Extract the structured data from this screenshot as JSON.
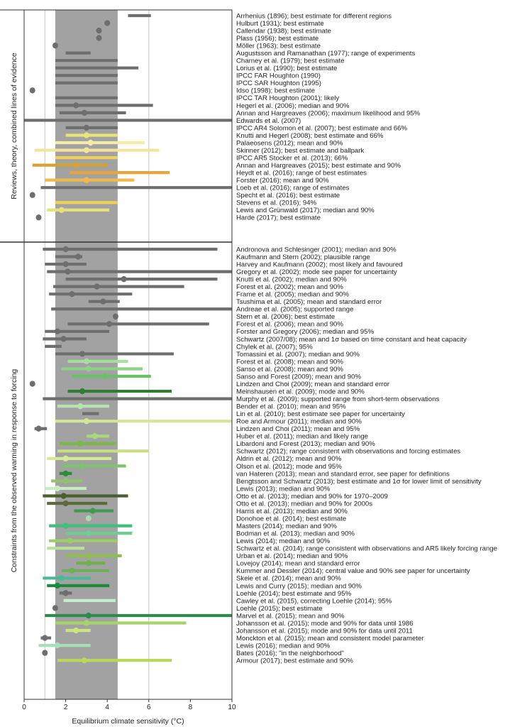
{
  "chart_data": {
    "type": "range-plot",
    "xlabel": "Equilibrium climate sensitivity (°C)",
    "xlim": [
      0,
      10
    ],
    "xticks": [
      "0",
      "2",
      "4",
      "6",
      "8",
      "10"
    ],
    "likely_range": [
      1.5,
      4.5
    ],
    "reference_lines": [
      1,
      6
    ],
    "grid": false,
    "panels": [
      {
        "label": "Reviews, theory, combined lines of evidence",
        "rows": [
          {
            "label": "Arrhenius (1896); best estimate for different regions",
            "low": 5.0,
            "high": 6.1,
            "best": null,
            "color": "#6e6e6e"
          },
          {
            "label": "Hulburt (1931); best estimate",
            "low": null,
            "high": null,
            "best": 4.0,
            "color": "#6e6e6e"
          },
          {
            "label": "Callendar (1938); best estimate",
            "low": null,
            "high": null,
            "best": 3.6,
            "color": "#6e6e6e"
          },
          {
            "label": "Plass (1956); best estimate",
            "low": null,
            "high": null,
            "best": 3.6,
            "color": "#6e6e6e"
          },
          {
            "label": "Möller (1963); best estimate",
            "low": null,
            "high": null,
            "best": 1.5,
            "color": "#6e6e6e"
          },
          {
            "label": "Augustsson and Ramanathan (1977); range of experiments",
            "low": 2.0,
            "high": 3.2,
            "best": null,
            "color": "#6e6e6e"
          },
          {
            "label": "Charney et al. (1979); best estimate",
            "low": 1.5,
            "high": 4.5,
            "best": null,
            "color": "#6e6e6e"
          },
          {
            "label": "Lorius et al. (1990); best estimate",
            "low": 1.5,
            "high": 5.5,
            "best": null,
            "color": "#6e6e6e"
          },
          {
            "label": "IPCC FAR Houghton (1990)",
            "low": 1.5,
            "high": 4.5,
            "best": null,
            "color": "#6e6e6e"
          },
          {
            "label": "IPCC SAR Houghton (1995)",
            "low": 1.5,
            "high": 4.5,
            "best": null,
            "color": "#6e6e6e"
          },
          {
            "label": "Idso (1998); best estimate",
            "low": null,
            "high": null,
            "best": 0.4,
            "color": "#6e6e6e"
          },
          {
            "label": "IPCC TAR Houghton (2001); likely",
            "low": 1.5,
            "high": 4.5,
            "best": null,
            "color": "#6e6e6e"
          },
          {
            "label": "Hegerl et al. (2006); median and 90%",
            "low": 1.5,
            "high": 6.2,
            "best": 2.5,
            "color": "#6e6e6e"
          },
          {
            "label": "Annan and Hargreaves (2006); maximum likelihood and 95%",
            "low": 1.7,
            "high": 4.9,
            "best": 2.9,
            "color": "#6e6e6e"
          },
          {
            "label": "Edwards et al. (2007)",
            "low": 0.0,
            "high": 10.0,
            "best": null,
            "color": "#6e6e6e"
          },
          {
            "label": "IPCC AR4 Solomon et al. (2007); best estimate and 66%",
            "low": 2.0,
            "high": 4.5,
            "best": 3.0,
            "color": "#6e6e6e"
          },
          {
            "label": "Knutti and Hegerl (2008); best estimate and 66%",
            "low": 2.0,
            "high": 4.5,
            "best": 3.0,
            "color": "#e6e67a"
          },
          {
            "label": "Palaeosens (2012); mean and 90%",
            "low": 1.5,
            "high": 5.8,
            "best": 3.2,
            "color": "#f3eba8"
          },
          {
            "label": "Skinner (2012); best estimate and ballpark",
            "low": 0.5,
            "high": 6.5,
            "best": 3.0,
            "color": "#f2e49d"
          },
          {
            "label": "IPCC AR5 Stocker et al. (2013); 66%",
            "low": 1.5,
            "high": 4.5,
            "best": null,
            "color": "#f0d060"
          },
          {
            "label": "Annan and Hargreaves (2015); best estimate and 90%",
            "low": 0.4,
            "high": 4.0,
            "best": 2.5,
            "color": "#d4a431"
          },
          {
            "label": "Heydt et al. (2016); range of best estimates",
            "low": 2.2,
            "high": 7.0,
            "best": null,
            "color": "#e8a63a"
          },
          {
            "label": "Forster (2016); mean and 90%",
            "low": 1.0,
            "high": 5.3,
            "best": 3.0,
            "color": "#f0b94a"
          },
          {
            "label": "Loeb et al. (2016); range of estimates",
            "low": 0.8,
            "high": 10.0,
            "best": null,
            "color": "#6e6e6e"
          },
          {
            "label": "Specht et al. (2016); best estimate",
            "low": null,
            "high": null,
            "best": 0.4,
            "color": "#6e6e6e"
          },
          {
            "label": "Stevens et al. (2016); 94%",
            "low": 1.5,
            "high": 4.5,
            "best": null,
            "color": "#f0d050"
          },
          {
            "label": "Lewis and Grünwald (2017); median and 90%",
            "low": 1.1,
            "high": 4.1,
            "best": 1.8,
            "color": "#e6e278"
          },
          {
            "label": "Harde (2017); best estimate",
            "low": null,
            "high": null,
            "best": 0.7,
            "color": "#6e6e6e"
          }
        ]
      },
      {
        "label": "Constraints from the observed warming in response to forcing",
        "rows": [
          {
            "label": "Andronova and Schlesinger (2001); median and 90%",
            "low": 0.9,
            "high": 9.3,
            "best": 2.0,
            "color": "#6e6e6e"
          },
          {
            "label": "Kaufmann and Stern (2002); plausible range",
            "low": 1.5,
            "high": 2.8,
            "best": 2.6,
            "color": "#6e6e6e"
          },
          {
            "label": "Harvey and Kaufmann (2002); most likely and favoured",
            "low": 1.0,
            "high": 3.0,
            "best": 2.0,
            "color": "#6e6e6e"
          },
          {
            "label": "Gregory et al. (2002); mode see paper for uncertainty",
            "low": 1.1,
            "high": 10.0,
            "best": 2.1,
            "color": "#6e6e6e"
          },
          {
            "label": "Knutti et al. (2002); median and 90%",
            "low": 2.0,
            "high": 9.3,
            "best": 4.8,
            "color": "#6e6e6e"
          },
          {
            "label": "Forest et al. (2002); mean and 90%",
            "low": 1.4,
            "high": 7.7,
            "best": 3.5,
            "color": "#6e6e6e"
          },
          {
            "label": "Frame et al. (2005); median and 90%",
            "low": 1.2,
            "high": 5.2,
            "best": 2.3,
            "color": "#6e6e6e"
          },
          {
            "label": "Tsushima et al. (2005); mean and standard error",
            "low": 3.1,
            "high": 4.6,
            "best": 3.8,
            "color": "#6e6e6e"
          },
          {
            "label": "Andreae et al. (2005); supported range",
            "low": 1.3,
            "high": 10.0,
            "best": null,
            "color": "#6e6e6e"
          },
          {
            "label": "Stern et al. (2006); best estimate",
            "low": null,
            "high": null,
            "best": 4.4,
            "color": "#6e6e6e"
          },
          {
            "label": "Forest et al. (2006); mean and 90%",
            "low": 2.1,
            "high": 8.9,
            "best": 4.1,
            "color": "#6e6e6e"
          },
          {
            "label": "Forster and Gregory (2006); median and 95%",
            "low": 1.0,
            "high": 4.1,
            "best": 1.6,
            "color": "#6e6e6e"
          },
          {
            "label": "Schwartz (2007/08); mean and 1σ based on time constant and heat capacity",
            "low": 0.9,
            "high": 3.0,
            "best": 1.9,
            "color": "#6e6e6e"
          },
          {
            "label": "Chylek et al. (2007); 95%",
            "low": 1.0,
            "high": 1.8,
            "best": null,
            "color": "#6e6e6e"
          },
          {
            "label": "Tomassini et al. (2007); median and 90%",
            "low": 1.5,
            "high": 7.2,
            "best": 2.8,
            "color": "#6e6e6e"
          },
          {
            "label": "Forest et al. (2008); mean and 90%",
            "low": 2.1,
            "high": 5.0,
            "best": 3.0,
            "color": "#a8dda0"
          },
          {
            "label": "Sanso et al. (2008); mean and 90%",
            "low": 1.8,
            "high": 5.7,
            "best": 3.1,
            "color": "#8ed28a"
          },
          {
            "label": "Sanso and Forest (2009); mean and 90%",
            "low": 2.3,
            "high": 6.1,
            "best": 3.9,
            "color": "#6abf6a"
          },
          {
            "label": "Lindzen and Choi (2009); mean and standard error",
            "low": null,
            "high": null,
            "best": 0.4,
            "color": "#6e6e6e"
          },
          {
            "label": "Meinshausen et al. (2009); mode and 90%",
            "low": 2.1,
            "high": 7.1,
            "best": 2.8,
            "color": "#2e7d32"
          },
          {
            "label": "Murphy et al. (2009); supported range from short-term observations",
            "low": 0.9,
            "high": 10.0,
            "best": null,
            "color": "#6e6e6e"
          },
          {
            "label": "Bender et al. (2010); mean and 95%",
            "low": 1.6,
            "high": 4.1,
            "best": 2.7,
            "color": "#b6e4b0"
          },
          {
            "label": "Lin et al. (2010); best estimate see paper for uncertainty",
            "low": 2.8,
            "high": 3.6,
            "best": null,
            "color": "#6e6e6e"
          },
          {
            "label": "Roe and Armour (2011); median and 90%",
            "low": 1.5,
            "high": 10.0,
            "best": 3.0,
            "color": "#d2e696"
          },
          {
            "label": "Lindzen and Choi (2011); mean and 95%",
            "low": 0.5,
            "high": 1.1,
            "best": 0.7,
            "color": "#6e6e6e"
          },
          {
            "label": "Huber et al. (2011); median and likely range",
            "low": 3.0,
            "high": 4.1,
            "best": 3.4,
            "color": "#a8d87a"
          },
          {
            "label": "Libardoni and Forest (2013); median and 90%",
            "low": 1.7,
            "high": 4.4,
            "best": 2.7,
            "color": "#7ab848"
          },
          {
            "label": "Schwartz (2012); range consistent with observations and forcing estimates",
            "low": 1.6,
            "high": 6.0,
            "best": null,
            "color": "#c6e082"
          },
          {
            "label": "Aldrin et al. (2012); mean and 90%",
            "low": 1.1,
            "high": 4.2,
            "best": 2.0,
            "color": "#d6ea96"
          },
          {
            "label": "Olson et al. (2012); mode and 95%",
            "low": 1.8,
            "high": 4.9,
            "best": 2.8,
            "color": "#7cc46e"
          },
          {
            "label": "van Hateren (2013); mean and standard error, see paper for definitions",
            "low": 1.7,
            "high": 2.3,
            "best": 2.0,
            "color": "#2e8b3e"
          },
          {
            "label": "Bengtsson and Schwartz (2013); best estimate and 1σ for lower limit of sensitivity",
            "low": 1.3,
            "high": 2.8,
            "best": 2.0,
            "color": "#92c46e"
          },
          {
            "label": "Lewis (2013); median and 90%",
            "low": 1.0,
            "high": 3.0,
            "best": 1.6,
            "color": "#c8ecc0"
          },
          {
            "label": "Otto et al. (2013); median and 90% for 1970–2009",
            "low": 0.9,
            "high": 5.0,
            "best": 1.9,
            "color": "#4c5d30"
          },
          {
            "label": "Otto et al. (2013); median and 90% for 2000s",
            "low": 1.1,
            "high": 4.0,
            "best": 2.0,
            "color": "#5a6b3a"
          },
          {
            "label": "Harris et al. (2013); median and 90%",
            "low": 2.4,
            "high": 4.3,
            "best": 3.3,
            "color": "#3f9a52"
          },
          {
            "label": "Donohoe et al. (2014); best estimate",
            "low": null,
            "high": null,
            "best": 3.1,
            "color": "#a8dcb0"
          },
          {
            "label": "Masters (2014); median and 90%",
            "low": 1.2,
            "high": 5.2,
            "best": 2.0,
            "color": "#3fbf7a"
          },
          {
            "label": "Bodman et al. (2013); median and 90%",
            "low": 2.0,
            "high": 5.2,
            "best": 3.1,
            "color": "#6ccf92"
          },
          {
            "label": "Lewis (2014); median and 90%",
            "low": 1.2,
            "high": 4.5,
            "best": 2.2,
            "color": "#9ccf66"
          },
          {
            "label": "Schwartz et al. (2014); range consistent with observations and AR5 likely forcing range",
            "low": 1.1,
            "high": 2.9,
            "best": null,
            "color": "#b8e29e"
          },
          {
            "label": "Urban et al. (2014); median and 90%",
            "low": 2.0,
            "high": 4.7,
            "best": 3.1,
            "color": "#8cbf4e"
          },
          {
            "label": "Lovejoy (2014); mean and standard error",
            "low": 2.5,
            "high": 3.9,
            "best": 3.1,
            "color": "#6fb04a"
          },
          {
            "label": "Kummer and Dessler (2014); central value and 90% see paper for uncertainty",
            "low": 1.8,
            "high": 4.1,
            "best": 2.3,
            "color": "#6eb05a"
          },
          {
            "label": "Skeie et al. (2014); mean and 90%",
            "low": 0.9,
            "high": 3.2,
            "best": 1.8,
            "color": "#4cb89a"
          },
          {
            "label": "Lewis and Curry (2015); median and 90%",
            "low": 1.1,
            "high": 4.1,
            "best": 1.6,
            "color": "#1e8a3c"
          },
          {
            "label": "Loehle (2014); best estimate and 95%",
            "low": 1.7,
            "high": 2.3,
            "best": 2.0,
            "color": "#6e6e6e"
          },
          {
            "label": "Cawley et al. (2015), correcting Loehle (2014); 95%",
            "low": 1.9,
            "high": 4.4,
            "best": null,
            "color": "#c6ecd0"
          },
          {
            "label": "Loehle (2015); best estimate",
            "low": null,
            "high": null,
            "best": 1.5,
            "color": "#6e6e6e"
          },
          {
            "label": "Marvel et al. (2015); mean and 90%",
            "low": 1.0,
            "high": 10.0,
            "best": 3.1,
            "color": "#2e8b4e"
          },
          {
            "label": "Johansson et al. (2015); mode and 90% for data until 1986",
            "low": 1.5,
            "high": 7.8,
            "best": 3.0,
            "color": "#a6d46a"
          },
          {
            "label": "Johansson et al. (2015); mode and 90% for data until 2011",
            "low": 2.0,
            "high": 3.2,
            "best": 2.5,
            "color": "#d0e47e"
          },
          {
            "label": "Monckton et al. (2015); mean and consistent model parameter",
            "low": 0.8,
            "high": 1.3,
            "best": 1.0,
            "color": "#6e6e6e"
          },
          {
            "label": "Lewis (2016); median and 90%",
            "low": 0.7,
            "high": 3.2,
            "best": 1.6,
            "color": "#a6e0b8"
          },
          {
            "label": "Bates (2016); \"in the neighborhood\"",
            "low": null,
            "high": null,
            "best": 1.0,
            "color": "#6e6e6e"
          },
          {
            "label": "Armour (2017); best estimate and 90%",
            "low": 1.6,
            "high": 7.1,
            "best": 2.9,
            "color": "#bcd65a"
          }
        ]
      }
    ]
  }
}
